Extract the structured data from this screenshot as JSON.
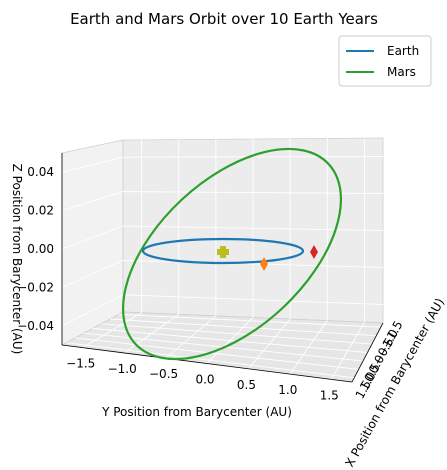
{
  "chart_data": {
    "type": "line",
    "projection": "3d",
    "title": "Earth and Mars Orbit over 10 Earth Years",
    "xlabel": "X Position from Barycenter (AU)",
    "ylabel": "Y Position from Barycenter (AU)",
    "zlabel": "Z Position from Barycenter (AU)",
    "x_ticks": [
      "1.5",
      "1.0",
      "0.5",
      "0.0",
      "−0.5",
      "−1.0",
      "−1.5"
    ],
    "y_ticks": [
      "−1.5",
      "−1.0",
      "−0.5",
      "0.0",
      "0.5",
      "1.0",
      "1.5"
    ],
    "z_ticks": [
      "−0.04",
      "−0.02",
      "0.00",
      "0.02",
      "0.04"
    ],
    "legend_position": "top-right",
    "grid": true,
    "series": [
      {
        "name": "Earth",
        "color": "#1f77b4",
        "orbit_radius_au": 1.0,
        "z_amplitude_au": 0.0
      },
      {
        "name": "Mars",
        "color": "#2ca02c",
        "orbit_radius_au": 1.52,
        "z_amplitude_au": 0.045
      }
    ],
    "markers": [
      {
        "label": "barycenter",
        "color": "#bcbd22",
        "shape": "plus"
      },
      {
        "label": "earth-end",
        "color": "#ff7f0e",
        "shape": "diamond"
      },
      {
        "label": "mars-end",
        "color": "#d62728",
        "shape": "diamond"
      }
    ]
  }
}
